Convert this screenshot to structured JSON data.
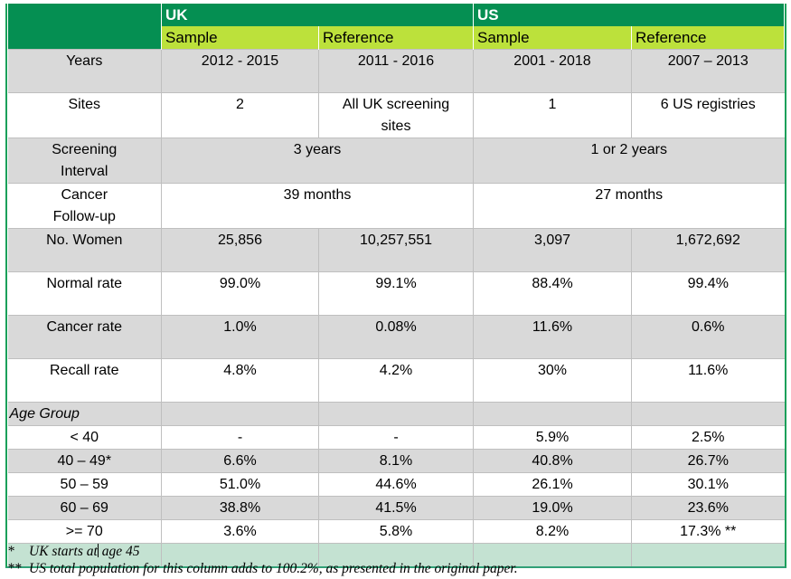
{
  "colors": {
    "header_green": "#058f52",
    "header_lime": "#bce13b",
    "row_gray": "#d9d9d9",
    "footer_mint": "#c4e2d2",
    "border_side": "#1ba05a",
    "border_bottom": "#31a077",
    "border_inner": "#bfbfbf"
  },
  "table": {
    "header": {
      "uk": "UK",
      "us": "US",
      "uk_sample": "Sample",
      "uk_reference": "Reference",
      "us_sample": "Sample",
      "us_reference": "Reference"
    },
    "rows": {
      "years": {
        "label": "Years",
        "uk_sample": "2012 - 2015",
        "uk_reference": "2011 - 2016",
        "us_sample": "2001 - 2018",
        "us_reference": "2007 – 2013"
      },
      "sites": {
        "label": "Sites",
        "uk_sample": "2",
        "uk_reference": "All UK screening\nsites",
        "us_sample": "1",
        "us_reference": "6 US registries"
      },
      "screening_interval": {
        "label": "Screening\nInterval",
        "uk": "3 years",
        "us": "1 or 2 years"
      },
      "cancer_followup": {
        "label": "Cancer\nFollow-up",
        "uk": "39 months",
        "us": "27 months"
      },
      "no_women": {
        "label": "No. Women",
        "uk_sample": "25,856",
        "uk_reference": "10,257,551",
        "us_sample": "3,097",
        "us_reference": "1,672,692"
      },
      "normal_rate": {
        "label": "Normal rate",
        "uk_sample": "99.0%",
        "uk_reference": "99.1%",
        "us_sample": "88.4%",
        "us_reference": "99.4%"
      },
      "cancer_rate": {
        "label": "Cancer rate",
        "uk_sample": "1.0%",
        "uk_reference": "0.08%",
        "us_sample": "11.6%",
        "us_reference": "0.6%"
      },
      "recall_rate": {
        "label": "Recall rate",
        "uk_sample": "4.8%",
        "uk_reference": "4.2%",
        "us_sample": "30%",
        "us_reference": "11.6%"
      },
      "age_group": {
        "label": "Age Group"
      },
      "age_lt_40": {
        "label": "< 40",
        "uk_sample": "-",
        "uk_reference": "-",
        "us_sample": "5.9%",
        "us_reference": "2.5%"
      },
      "age_40_49": {
        "label": "40 – 49*",
        "uk_sample": "6.6%",
        "uk_reference": "8.1%",
        "us_sample": "40.8%",
        "us_reference": "26.7%"
      },
      "age_50_59": {
        "label": "50 – 59",
        "uk_sample": "51.0%",
        "uk_reference": "44.6%",
        "us_sample": "26.1%",
        "us_reference": "30.1%"
      },
      "age_60_69": {
        "label": "60 – 69",
        "uk_sample": "38.8%",
        "uk_reference": "41.5%",
        "us_sample": "19.0%",
        "us_reference": "23.6%"
      },
      "age_ge_70": {
        "label": ">= 70",
        "uk_sample": "3.6%",
        "uk_reference": "5.8%",
        "us_sample": "8.2%",
        "us_reference": "17.3% **"
      }
    }
  },
  "footnotes": {
    "note1": {
      "marker": "*",
      "text_before_cursor": "UK starts at",
      "text_after_cursor": " age 45"
    },
    "note2": {
      "marker": "**",
      "text": "US total population for this column adds to 100.2%, as presented in the original paper."
    }
  }
}
